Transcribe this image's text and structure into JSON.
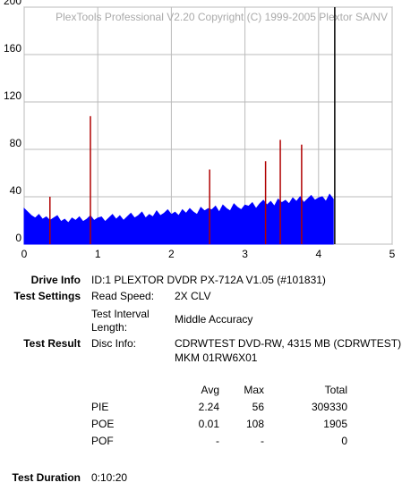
{
  "chart_data": {
    "type": "area",
    "watermark": "PlexTools Professional V2.20 Copyright (C) 1999-2005 Plextor SA/NV",
    "xlim": [
      0,
      5
    ],
    "xticks": [
      0,
      1,
      2,
      3,
      4,
      5
    ],
    "ylim": [
      0,
      200
    ],
    "yticks": [
      0,
      40,
      80,
      120,
      160,
      200
    ],
    "grid": true,
    "end_marker": 4.22,
    "end_marker_color": "#000000",
    "series": [
      {
        "color": "#0000ff",
        "x": [
          0,
          0.05,
          0.1,
          0.15,
          0.2,
          0.25,
          0.3,
          0.35,
          0.4,
          0.45,
          0.5,
          0.55,
          0.6,
          0.65,
          0.7,
          0.75,
          0.8,
          0.85,
          0.9,
          0.95,
          1,
          1.05,
          1.1,
          1.15,
          1.2,
          1.25,
          1.3,
          1.35,
          1.4,
          1.45,
          1.5,
          1.55,
          1.6,
          1.65,
          1.7,
          1.75,
          1.8,
          1.85,
          1.9,
          1.95,
          2,
          2.05,
          2.1,
          2.15,
          2.2,
          2.25,
          2.3,
          2.35,
          2.4,
          2.45,
          2.5,
          2.55,
          2.6,
          2.65,
          2.7,
          2.75,
          2.8,
          2.85,
          2.9,
          2.95,
          3,
          3.05,
          3.1,
          3.15,
          3.2,
          3.25,
          3.3,
          3.35,
          3.4,
          3.45,
          3.5,
          3.55,
          3.6,
          3.65,
          3.7,
          3.75,
          3.8,
          3.85,
          3.9,
          3.95,
          4,
          4.05,
          4.1,
          4.15,
          4.2
        ],
        "values": [
          30,
          27,
          24,
          22,
          25,
          21,
          23,
          20,
          22,
          24,
          19,
          21,
          18,
          22,
          20,
          23,
          19,
          21,
          24,
          20,
          22,
          23,
          19,
          22,
          25,
          21,
          24,
          20,
          23,
          26,
          22,
          24,
          27,
          22,
          25,
          23,
          28,
          24,
          26,
          29,
          25,
          27,
          24,
          29,
          26,
          30,
          27,
          25,
          31,
          28,
          30,
          29,
          32,
          27,
          33,
          30,
          28,
          34,
          31,
          29,
          33,
          32,
          35,
          30,
          34,
          37,
          33,
          36,
          32,
          38,
          35,
          37,
          34,
          39,
          36,
          40,
          35,
          38,
          41,
          37,
          39,
          40,
          36,
          42,
          38
        ]
      },
      {
        "color": "#b00000",
        "x": [
          0.35,
          0.9,
          2.52,
          3.28,
          3.48,
          3.77
        ],
        "values": [
          40,
          108,
          63,
          70,
          88,
          84
        ]
      }
    ]
  },
  "report": {
    "drive_info": {
      "label": "Drive Info",
      "value": "ID:1 PLEXTOR DVDR PX-712A V1.05 (#101831)"
    },
    "test_settings": {
      "label": "Test Settings",
      "read_speed_label": "Read Speed:",
      "read_speed": "2X CLV",
      "interval_label": [
        "Test Interval",
        "Length:"
      ],
      "interval": "Middle Accuracy"
    },
    "test_result": {
      "label": "Test Result",
      "disc_info_label": "Disc Info:",
      "disc_info": [
        "CDRWTEST DVD-RW, 4315 MB (CDRWTEST)",
        "MKM 01RW6X01"
      ]
    },
    "table": {
      "header": [
        "Avg",
        "Max",
        "Total"
      ],
      "rows": [
        [
          "PIE",
          "2.24",
          "56",
          "309330"
        ],
        [
          "POE",
          "0.01",
          "108",
          "1905"
        ],
        [
          "POF",
          "-",
          "-",
          "0"
        ]
      ]
    },
    "test_duration": {
      "label": "Test Duration",
      "value": "0:10:20"
    }
  }
}
